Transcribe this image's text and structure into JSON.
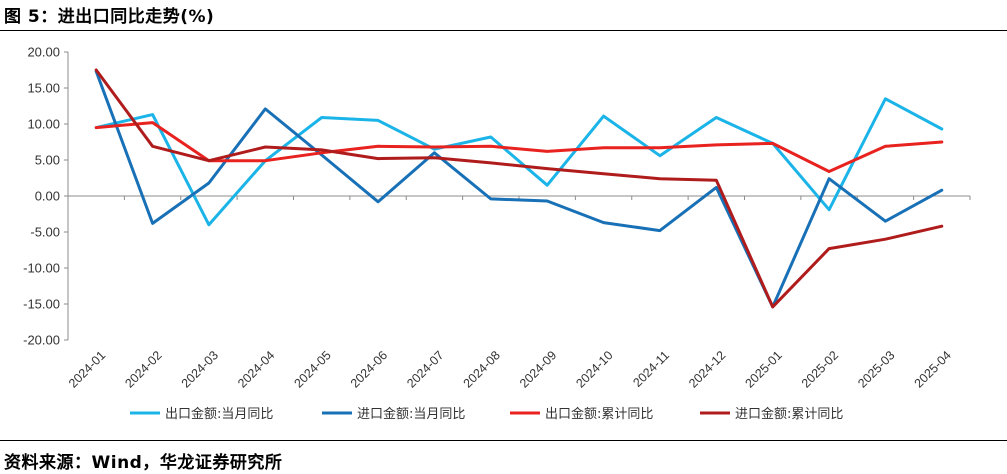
{
  "figure": {
    "title": "图 5：进出口同比走势(%)",
    "source": "资料来源：Wind，华龙证券研究所"
  },
  "chart_data": {
    "type": "line",
    "title": "进出口同比走势(%)",
    "xlabel": "",
    "ylabel": "",
    "ylim": [
      -20,
      20
    ],
    "yticks": [
      -20,
      -15,
      -10,
      -5,
      0,
      5,
      10,
      15,
      20
    ],
    "ytick_labels": [
      "-20.00",
      "-15.00",
      "-10.00",
      "-5.00",
      "0.00",
      "5.00",
      "10.00",
      "15.00",
      "20.00"
    ],
    "grid": false,
    "legend_position": "bottom",
    "categories": [
      "2024-01",
      "2024-02",
      "2024-03",
      "2024-04",
      "2024-05",
      "2024-06",
      "2024-07",
      "2024-08",
      "2024-09",
      "2024-10",
      "2024-11",
      "2024-12",
      "2025-01",
      "2025-02",
      "2025-03",
      "2025-04"
    ],
    "series": [
      {
        "name": "出口金额:当月同比",
        "color": "#1BB4E8",
        "values": [
          9.5,
          11.3,
          -4.0,
          4.9,
          10.9,
          10.5,
          6.5,
          8.2,
          1.5,
          11.1,
          5.6,
          10.9,
          7.3,
          -1.9,
          13.5,
          9.3
        ]
      },
      {
        "name": "进口金额:当月同比",
        "color": "#1870B6",
        "values": [
          17.3,
          -3.8,
          1.8,
          12.1,
          5.7,
          -0.8,
          6.0,
          -0.4,
          -0.7,
          -3.7,
          -4.8,
          1.2,
          -15.4,
          2.4,
          -3.5,
          0.8
        ]
      },
      {
        "name": "出口金额:累计同比",
        "color": "#E8221F",
        "values": [
          9.5,
          10.2,
          4.9,
          4.9,
          6.0,
          6.9,
          6.8,
          6.9,
          6.2,
          6.7,
          6.7,
          7.1,
          7.3,
          3.4,
          6.9,
          7.5
        ]
      },
      {
        "name": "进口金额:累计同比",
        "color": "#B01C1C",
        "values": [
          17.5,
          6.9,
          4.9,
          6.8,
          6.4,
          5.2,
          5.3,
          4.6,
          3.8,
          3.1,
          2.4,
          2.2,
          -15.4,
          -7.3,
          -6.0,
          -4.2
        ]
      }
    ]
  }
}
